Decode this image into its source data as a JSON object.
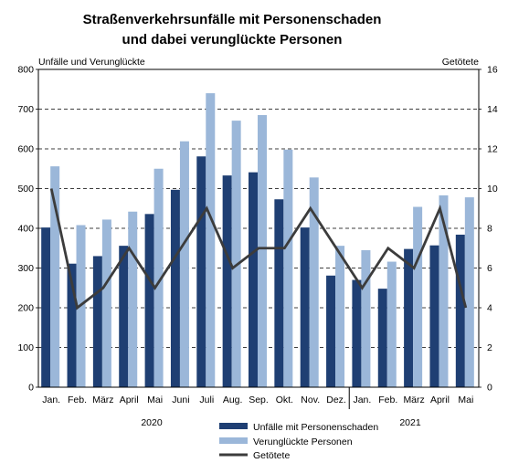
{
  "chart_data": {
    "type": "bar",
    "title_line1": "Straßenverkehrsunfälle mit Personenschaden",
    "title_line2": "und dabei verunglückte Personen",
    "ylabel_left": "Unfälle und Verunglückte",
    "ylabel_right": "Getötete",
    "ylim_left": [
      0,
      800
    ],
    "ylim_right": [
      0,
      16
    ],
    "yticks_left": [
      "0",
      "100",
      "200",
      "300",
      "400",
      "500",
      "600",
      "700",
      "800"
    ],
    "yticks_right": [
      "0",
      "2",
      "4",
      "6",
      "8",
      "10",
      "12",
      "14",
      "16"
    ],
    "grid": "horizontal dashed",
    "legend_position": "bottom-center",
    "categories": [
      "Jan.",
      "Feb.",
      "März",
      "April",
      "Mai",
      "Juni",
      "Juli",
      "Aug.",
      "Sep.",
      "Okt.",
      "Nov.",
      "Dez.",
      "Jan.",
      "Feb.",
      "März",
      "April",
      "Mai"
    ],
    "year_labels": [
      "2020",
      "2021"
    ],
    "series": [
      {
        "name": "Unfälle mit Personenschaden",
        "kind": "bar",
        "axis": "left",
        "color": "#1f3f73",
        "values": [
          402,
          311,
          330,
          356,
          436,
          497,
          581,
          533,
          541,
          473,
          402,
          281,
          270,
          248,
          348,
          357,
          384
        ]
      },
      {
        "name": "Verunglückte Personen",
        "kind": "bar",
        "axis": "left",
        "color": "#9bb7d9",
        "values": [
          556,
          408,
          422,
          442,
          550,
          619,
          740,
          671,
          685,
          598,
          528,
          356,
          345,
          316,
          454,
          483,
          478
        ]
      },
      {
        "name": "Getötete",
        "kind": "line",
        "axis": "right",
        "color": "#3c3c3c",
        "values": [
          10,
          4,
          5,
          7,
          5,
          7,
          9,
          6,
          7,
          7,
          9,
          7,
          5,
          7,
          6,
          9,
          4
        ]
      }
    ]
  }
}
